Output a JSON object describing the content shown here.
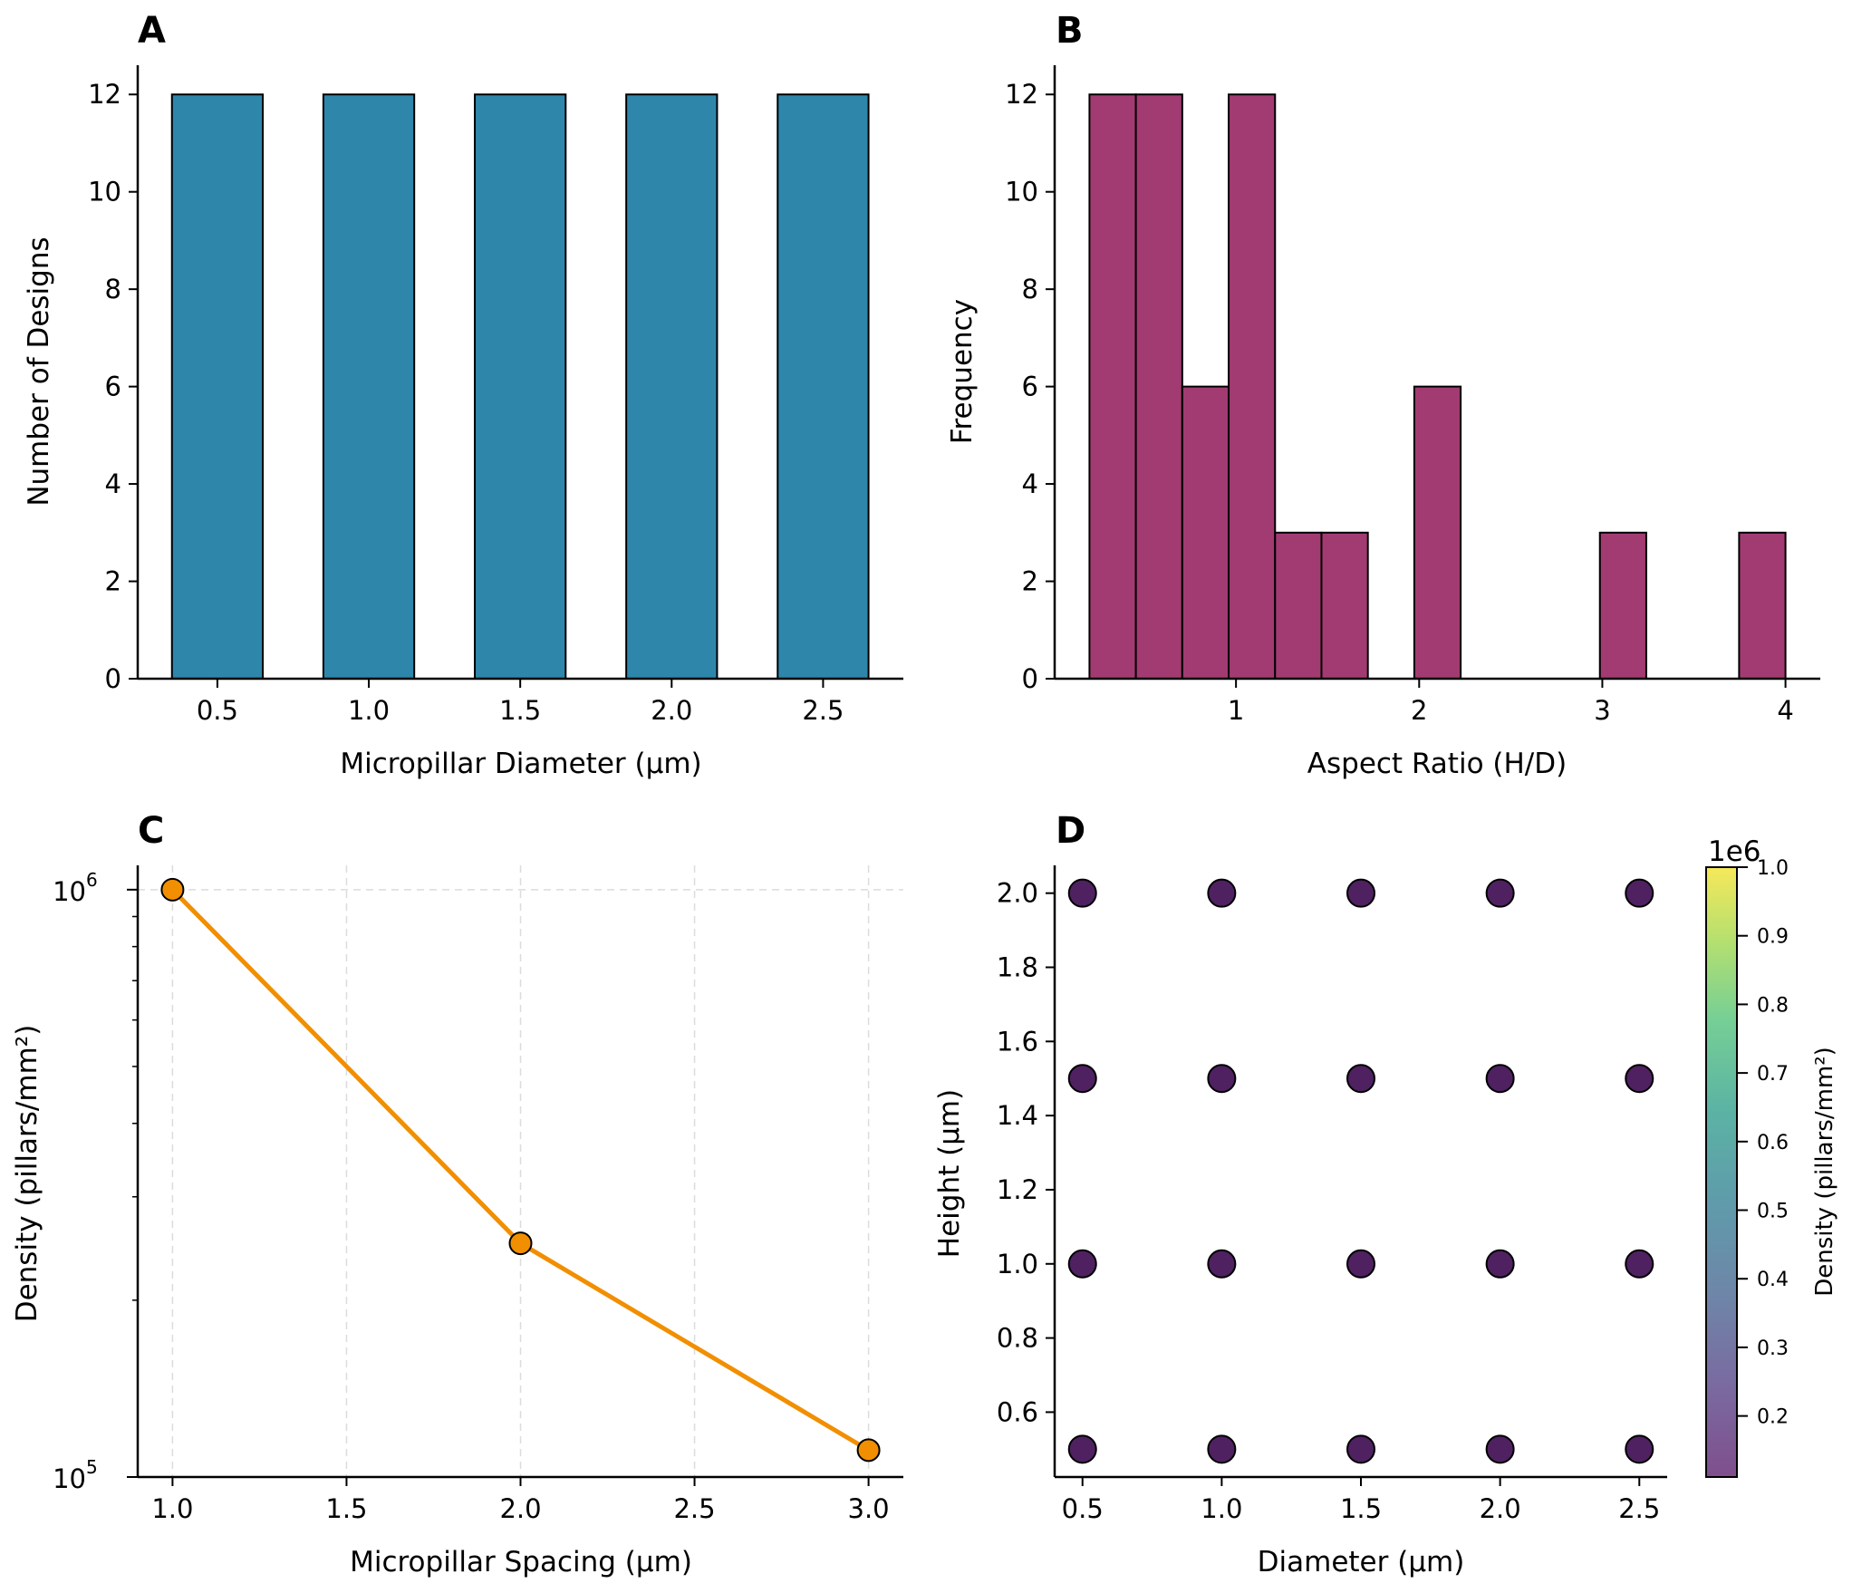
{
  "chart_data": [
    {
      "panel": "A",
      "type": "bar",
      "title": "",
      "xlabel": "Micropillar Diameter (µm)",
      "ylabel": "Number of Designs",
      "categories": [
        0.5,
        1.0,
        1.5,
        2.0,
        2.5
      ],
      "values": [
        12,
        12,
        12,
        12,
        12
      ],
      "bar_width": 0.3,
      "xlim": [
        0.237,
        2.765
      ],
      "ylim": [
        0,
        12.6
      ],
      "xticks": [
        "0.5",
        "1.0",
        "1.5",
        "2.0",
        "2.5"
      ],
      "yticks": [
        "0",
        "2",
        "4",
        "6",
        "8",
        "10",
        "12"
      ],
      "color": "#2e86ab",
      "grid": false
    },
    {
      "panel": "B",
      "type": "bar",
      "subtype": "histogram",
      "title": "",
      "xlabel": "Aspect Ratio (H/D)",
      "ylabel": "Frequency",
      "bin_edges": [
        0.2,
        0.4533,
        0.7067,
        0.96,
        1.2133,
        1.4667,
        1.72,
        1.9733,
        2.2267,
        2.48,
        2.7333,
        2.9867,
        3.24,
        3.4933,
        3.7467,
        4.0
      ],
      "values": [
        12,
        12,
        6,
        12,
        3,
        3,
        0,
        6,
        0,
        0,
        0,
        3,
        0,
        0,
        3
      ],
      "xlim": [
        0.01,
        4.19
      ],
      "ylim": [
        0,
        12.6
      ],
      "xticks": [
        "1",
        "2",
        "3",
        "4"
      ],
      "yticks": [
        "0",
        "2",
        "4",
        "6",
        "8",
        "10",
        "12"
      ],
      "color": "#a23b72",
      "grid": false
    },
    {
      "panel": "C",
      "type": "line",
      "title": "",
      "xlabel": "Micropillar Spacing (µm)",
      "ylabel": "Density (pillars/mm²)",
      "x": [
        1.0,
        2.0,
        3.0
      ],
      "series": [
        {
          "name": "Density",
          "values": [
            1000000,
            250000,
            111111
          ]
        }
      ],
      "yscale": "log",
      "xlim": [
        0.9,
        3.1
      ],
      "ylim": [
        100000,
        1100000
      ],
      "xticks": [
        "1.0",
        "1.5",
        "2.0",
        "2.5",
        "3.0"
      ],
      "yticks": [
        {
          "base": "10",
          "exp": "5"
        },
        {
          "base": "10",
          "exp": "6"
        }
      ],
      "color": "#f18f01",
      "grid": true
    },
    {
      "panel": "D",
      "type": "scatter",
      "title": "",
      "xlabel": "Diameter (µm)",
      "ylabel": "Height (µm)",
      "x_values": [
        0.5,
        1.0,
        1.5,
        2.0,
        2.5
      ],
      "y_values": [
        0.5,
        1.0,
        1.5,
        2.0
      ],
      "point_color_value": 111111,
      "xlim": [
        0.4,
        2.6
      ],
      "ylim": [
        0.425,
        2.075
      ],
      "xticks": [
        "0.5",
        "1.0",
        "1.5",
        "2.0",
        "2.5"
      ],
      "yticks": [
        "0.6",
        "0.8",
        "1.0",
        "1.2",
        "1.4",
        "1.6",
        "1.8",
        "2.0"
      ],
      "colorbar": {
        "label": "Density (pillars/mm²)",
        "offset_text": "1e6",
        "colormap": "viridis",
        "range": [
          0.111,
          1.0
        ],
        "ticks": [
          "0.2",
          "0.3",
          "0.4",
          "0.5",
          "0.6",
          "0.7",
          "0.8",
          "0.9",
          "1.0"
        ]
      },
      "grid": false
    }
  ],
  "panel_labels": [
    "A",
    "B",
    "C",
    "D"
  ]
}
